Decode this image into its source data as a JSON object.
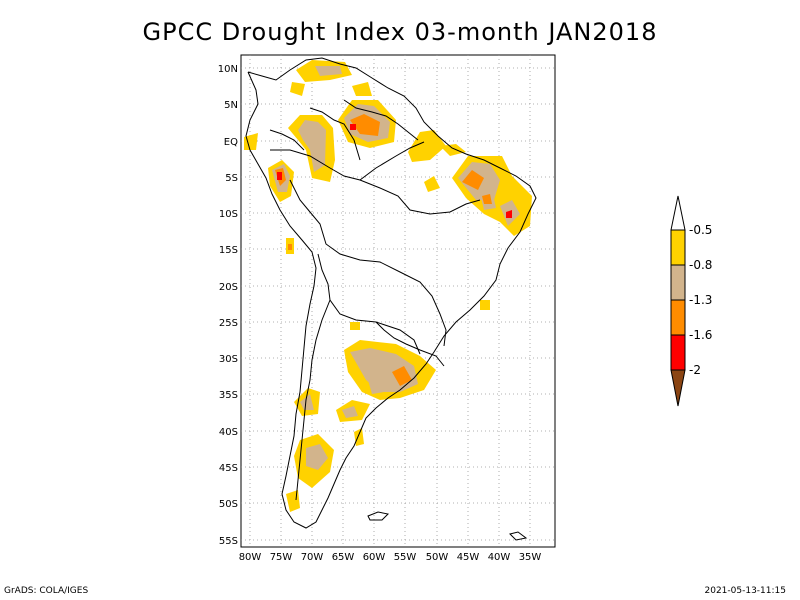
{
  "title": "GPCC Drought Index 03-month JAN2018",
  "lat_labels": [
    "10N",
    "5N",
    "EQ",
    "5S",
    "10S",
    "15S",
    "20S",
    "25S",
    "30S",
    "35S",
    "40S",
    "45S",
    "50S",
    "55S"
  ],
  "lon_labels": [
    "80W",
    "75W",
    "70W",
    "65W",
    "60W",
    "55W",
    "50W",
    "45W",
    "40W",
    "35W"
  ],
  "colorbar": {
    "labels": [
      "-0.5",
      "-0.8",
      "-1.3",
      "-1.6",
      "-2"
    ],
    "colors": {
      "white": "#ffffff",
      "yellow": "#ffd200",
      "tan": "#d2b48c",
      "orange": "#ff8c00",
      "red": "#ff0000",
      "brown": "#8b4513"
    }
  },
  "footer": {
    "left": "GrADS: COLA/IGES",
    "right": "2021-05-13-11:15"
  }
}
